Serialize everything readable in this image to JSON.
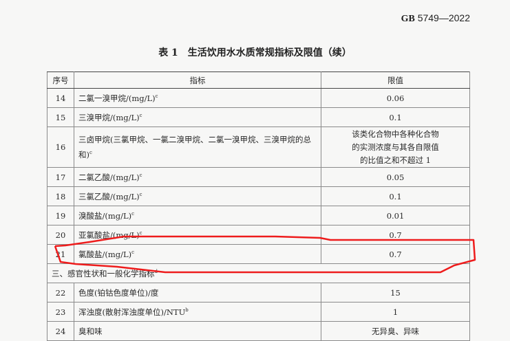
{
  "header": {
    "std_prefix": "GB",
    "std_number": "5749—2022"
  },
  "title": "表 1　生活饮用水水质常规指标及限值（续）",
  "columns": [
    "序号",
    "指标",
    "限值"
  ],
  "rows": [
    {
      "no": "14",
      "indicator": "二氯一溴甲烷/(mg/L)",
      "sup": "c",
      "limit": "0.06"
    },
    {
      "no": "15",
      "indicator": "三溴甲烷/(mg/L)",
      "sup": "c",
      "limit": "0.1"
    },
    {
      "no": "16",
      "indicator": "三卤甲烷(三氯甲烷、一氯二溴甲烷、二氯一溴甲烷、三溴甲烷的总和)",
      "sup": "c",
      "limit": "该类化合物中各种化合物的实测浓度与其各自限值的比值之和不超过 1"
    },
    {
      "no": "17",
      "indicator": "二氯乙酸/(mg/L)",
      "sup": "c",
      "limit": "0.05"
    },
    {
      "no": "18",
      "indicator": "三氯乙酸/(mg/L)",
      "sup": "c",
      "limit": "0.1"
    },
    {
      "no": "19",
      "indicator": "溴酸盐/(mg/L)",
      "sup": "c",
      "limit": "0.01"
    },
    {
      "no": "20",
      "indicator": "亚氯酸盐/(mg/L)",
      "sup": "c",
      "limit": "0.7"
    },
    {
      "no": "21",
      "indicator": "氯酸盐/(mg/L)",
      "sup": "c",
      "limit": "0.7"
    }
  ],
  "section": {
    "label": "三、感官性状和一般化学指标",
    "sup": "d"
  },
  "rows2": [
    {
      "no": "22",
      "indicator": "色度(铂钴色度单位)/度",
      "sup": "",
      "limit": "15"
    },
    {
      "no": "23",
      "indicator": "浑浊度(散射浑浊度单位)/NTU",
      "sup": "b",
      "limit": "1"
    },
    {
      "no": "24",
      "indicator": "臭和味",
      "sup": "",
      "limit": "无异臭、异味"
    }
  ],
  "annotation_color": "#ee1c1c"
}
